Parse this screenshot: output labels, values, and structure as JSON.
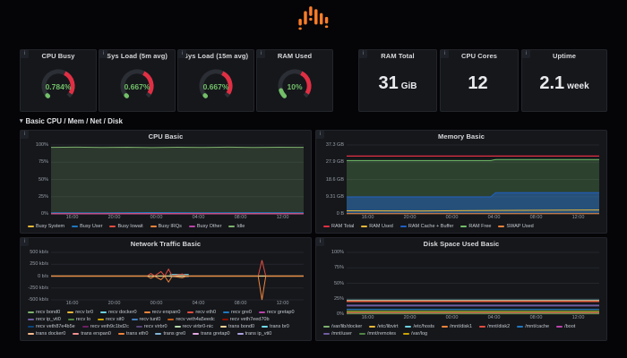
{
  "icons": {
    "panel_info": "i",
    "row_collapse": "▾"
  },
  "row": {
    "label": "Basic CPU / Mem / Net / Disk"
  },
  "colors": {
    "green": "#73bf69",
    "red": "#e02f44",
    "track": "#2b2e34",
    "panel": "#15171b"
  },
  "gauges": [
    {
      "title": "CPU Busy",
      "value": "0.784%",
      "percent": 0.784
    },
    {
      "title": "Sys Load (5m avg)",
      "value": "0.667%",
      "percent": 0.667
    },
    {
      "title": "Sys Load (15m avg)",
      "value": "0.667%",
      "percent": 0.667
    },
    {
      "title": "RAM Used",
      "value": "10%",
      "percent": 10
    }
  ],
  "stats": [
    {
      "title": "RAM Total",
      "value": "31",
      "unit": "GiB"
    },
    {
      "title": "CPU Cores",
      "value": "12",
      "unit": ""
    },
    {
      "title": "Uptime",
      "value": "2.1",
      "unit": "week"
    }
  ],
  "chart_data": [
    {
      "type": "area",
      "title": "CPU Basic",
      "x_ticks": [
        "16:00",
        "20:00",
        "00:00",
        "04:00",
        "08:00",
        "12:00"
      ],
      "y_ticks": [
        "100%",
        "75%",
        "50%",
        "25%",
        "0%"
      ],
      "ylim": [
        0,
        100
      ],
      "series": [
        {
          "name": "Busy System",
          "color": "#EAB839",
          "points": [
            [
              0,
              1.1
            ],
            [
              0.2,
              0.9
            ],
            [
              0.4,
              1.3
            ],
            [
              0.6,
              1.0
            ],
            [
              0.8,
              1.2
            ],
            [
              1,
              1.0
            ]
          ]
        },
        {
          "name": "Busy User",
          "color": "#1F78C1",
          "points": [
            [
              0,
              1.7
            ],
            [
              0.2,
              1.5
            ],
            [
              0.4,
              1.9
            ],
            [
              0.6,
              1.6
            ],
            [
              0.8,
              1.8
            ],
            [
              1,
              1.6
            ]
          ]
        },
        {
          "name": "Busy Iowait",
          "color": "#E24D42",
          "points": [
            [
              0,
              0.4
            ],
            [
              0.5,
              0.6
            ],
            [
              1,
              0.4
            ]
          ]
        },
        {
          "name": "Busy IRQs",
          "color": "#EF843C",
          "points": [
            [
              0,
              0.1
            ],
            [
              1,
              0.1
            ]
          ]
        },
        {
          "name": "Busy Other",
          "color": "#BA43A9",
          "points": [
            [
              0,
              0.2
            ],
            [
              1,
              0.2
            ]
          ]
        },
        {
          "name": "Idle",
          "color": "#7EB26D",
          "fill": 0.22,
          "points": [
            [
              0,
              96.6
            ],
            [
              0.1,
              96.9
            ],
            [
              0.2,
              96.4
            ],
            [
              0.3,
              96.8
            ],
            [
              0.4,
              96.3
            ],
            [
              0.5,
              96.7
            ],
            [
              0.6,
              96.4
            ],
            [
              0.7,
              96.9
            ],
            [
              0.8,
              96.5
            ],
            [
              0.9,
              96.8
            ],
            [
              1,
              96.6
            ]
          ]
        }
      ]
    },
    {
      "type": "area",
      "title": "Memory Basic",
      "x_ticks": [
        "16:00",
        "20:00",
        "00:00",
        "04:00",
        "08:00",
        "12:00"
      ],
      "y_ticks": [
        "37.3 GB",
        "27.9 GB",
        "18.6 GB",
        "9.31 GB",
        "0 B"
      ],
      "ylim": [
        0,
        37.3
      ],
      "series": [
        {
          "name": "RAM Total",
          "color": "#E02F44",
          "width": 1.2,
          "points": [
            [
              0,
              31.3
            ],
            [
              1,
              31.3
            ]
          ]
        },
        {
          "name": "RAM Used",
          "color": "#EAB839",
          "points": [
            [
              0,
              1.7
            ],
            [
              0.3,
              1.6
            ],
            [
              0.6,
              1.9
            ],
            [
              1,
              2.1
            ]
          ]
        },
        {
          "name": "RAM Cache + Buffer",
          "color": "#1F60C4",
          "fill": 0.5,
          "z": 2,
          "points": [
            [
              0,
              9.2
            ],
            [
              0.57,
              9.2
            ],
            [
              0.59,
              11.5
            ],
            [
              1,
              11.5
            ]
          ]
        },
        {
          "name": "RAM Free",
          "color": "#73BF69",
          "fill": 0.25,
          "z": 1,
          "points": [
            [
              0,
              28.9
            ],
            [
              0.57,
              28.9
            ],
            [
              0.59,
              29.4
            ],
            [
              1,
              29.4
            ]
          ]
        },
        {
          "name": "SWAP Used",
          "color": "#EF843C",
          "points": [
            [
              0,
              0.12
            ],
            [
              1,
              0.12
            ]
          ]
        }
      ]
    },
    {
      "type": "line",
      "title": "Network Traffic Basic",
      "x_ticks": [
        "16:00",
        "20:00",
        "00:00",
        "04:00",
        "08:00",
        "12:00"
      ],
      "y_ticks": [
        "500 kb/s",
        "250 kb/s",
        "0 b/s",
        "-250 kb/s",
        "-500 kb/s"
      ],
      "ylim": [
        -500,
        500
      ],
      "series": [
        {
          "name": "recv bond0",
          "color": "#7EB26D",
          "points": [
            [
              0,
              4
            ],
            [
              1,
              4
            ]
          ]
        },
        {
          "name": "recv br0",
          "color": "#EAB839",
          "points": [
            [
              0,
              1.5
            ],
            [
              1,
              1.5
            ]
          ]
        },
        {
          "name": "recv docker0",
          "color": "#6ED0E0",
          "fill": 0.45,
          "fill_to": -25,
          "z": 2,
          "points": [
            [
              0.47,
              35
            ],
            [
              0.545,
              35
            ]
          ]
        },
        {
          "name": "recv erspan0",
          "color": "#EF843C",
          "points": []
        },
        {
          "name": "recv eth0",
          "color": "#E24D42",
          "points": [
            [
              0,
              2
            ],
            [
              0.38,
              2
            ],
            [
              0.395,
              55
            ],
            [
              0.41,
              3
            ],
            [
              0.435,
              95
            ],
            [
              0.45,
              3
            ],
            [
              0.465,
              145
            ],
            [
              0.48,
              3
            ],
            [
              0.52,
              45
            ],
            [
              0.535,
              3
            ],
            [
              0.82,
              3
            ],
            [
              0.835,
              335
            ],
            [
              0.85,
              3
            ],
            [
              1,
              3
            ]
          ]
        },
        {
          "name": "recv gre0",
          "color": "#1F78C1",
          "points": []
        },
        {
          "name": "recv gretap0",
          "color": "#BA43A9",
          "points": []
        },
        {
          "name": "recv ip_vti0",
          "color": "#705DA0",
          "points": []
        },
        {
          "name": "recv lo",
          "color": "#508642",
          "points": [
            [
              0,
              0.8
            ],
            [
              1,
              0.8
            ]
          ]
        },
        {
          "name": "recv sit0",
          "color": "#CCA300",
          "points": []
        },
        {
          "name": "recv tunl0",
          "color": "#447EBC",
          "points": []
        },
        {
          "name": "recv veth4a5eedc",
          "color": "#C15C17",
          "points": []
        },
        {
          "name": "recv veth7eed70b",
          "color": "#890F02",
          "points": []
        },
        {
          "name": "recv veth87e4b5e",
          "color": "#0A437C",
          "points": []
        },
        {
          "name": "recv veth9c1bd2c",
          "color": "#6D1F62",
          "points": []
        },
        {
          "name": "recv virbr0",
          "color": "#584477",
          "points": []
        },
        {
          "name": "recv virbr0-nic",
          "color": "#B7DBAB",
          "points": []
        },
        {
          "name": "trans bond0",
          "color": "#F4D598",
          "points": [
            [
              0,
              -3
            ],
            [
              1,
              -3
            ]
          ]
        },
        {
          "name": "trans br0",
          "color": "#70DBED",
          "points": []
        },
        {
          "name": "trans docker0",
          "color": "#F9BA8F",
          "points": []
        },
        {
          "name": "trans erspan0",
          "color": "#F29191",
          "points": []
        },
        {
          "name": "trans eth0",
          "color": "#EF843C",
          "points": [
            [
              0,
              -2
            ],
            [
              0.38,
              -2
            ],
            [
              0.395,
              -45
            ],
            [
              0.41,
              -3
            ],
            [
              0.435,
              -75
            ],
            [
              0.45,
              -3
            ],
            [
              0.465,
              -125
            ],
            [
              0.48,
              -3
            ],
            [
              0.52,
              -35
            ],
            [
              0.535,
              -3
            ],
            [
              0.82,
              -3
            ],
            [
              0.835,
              -500
            ],
            [
              0.85,
              -3
            ],
            [
              1,
              -3
            ]
          ]
        },
        {
          "name": "trans gre0",
          "color": "#82B5D8",
          "points": []
        },
        {
          "name": "trans gretap0",
          "color": "#E5A8E2",
          "points": []
        },
        {
          "name": "trans ip_vti0",
          "color": "#AEA2E0",
          "points": []
        }
      ]
    },
    {
      "type": "line",
      "title": "Disk Space Used Basic",
      "x_ticks": [
        "16:00",
        "20:00",
        "00:00",
        "04:00",
        "08:00",
        "12:00"
      ],
      "y_ticks": [
        "100%",
        "75%",
        "50%",
        "25%",
        "0%"
      ],
      "ylim": [
        0,
        100
      ],
      "series": [
        {
          "name": "/var/lib/docker",
          "color": "#7EB26D",
          "points": [
            [
              0,
              5.5
            ],
            [
              1,
              5.5
            ]
          ]
        },
        {
          "name": "/etc/libvirt",
          "color": "#EAB839",
          "points": [
            [
              0,
              1.2
            ],
            [
              1,
              1.2
            ]
          ]
        },
        {
          "name": "/etc/hosts",
          "color": "#6ED0E0",
          "width": 1.5,
          "fill": 0.3,
          "fill_to": 19.5,
          "z": 2,
          "points": [
            [
              0,
              22.5
            ],
            [
              1,
              22.5
            ]
          ]
        },
        {
          "name": "/mnt/disk1",
          "color": "#EF843C",
          "points": [
            [
              0,
              21.7
            ],
            [
              1,
              21.7
            ]
          ]
        },
        {
          "name": "/mnt/disk2",
          "color": "#E24D42",
          "points": [
            [
              0,
              20.3
            ],
            [
              1,
              20.3
            ]
          ]
        },
        {
          "name": "/mnt/cache",
          "color": "#1F78C1",
          "points": [
            [
              0,
              8
            ],
            [
              1,
              8
            ]
          ]
        },
        {
          "name": "/boot",
          "color": "#BA43A9",
          "points": [
            [
              0,
              2.3
            ],
            [
              1,
              2.3
            ]
          ]
        },
        {
          "name": "/mnt/user",
          "color": "#705DA0",
          "width": 2,
          "points": [
            [
              0,
              14
            ],
            [
              1,
              14
            ]
          ]
        },
        {
          "name": "/mnt/remotes",
          "color": "#508642",
          "points": [
            [
              0,
              0.6
            ],
            [
              1,
              0.6
            ]
          ]
        },
        {
          "name": "/var/log",
          "color": "#CCA300",
          "points": [
            [
              0,
              3.3
            ],
            [
              1,
              3.3
            ]
          ]
        }
      ]
    }
  ]
}
